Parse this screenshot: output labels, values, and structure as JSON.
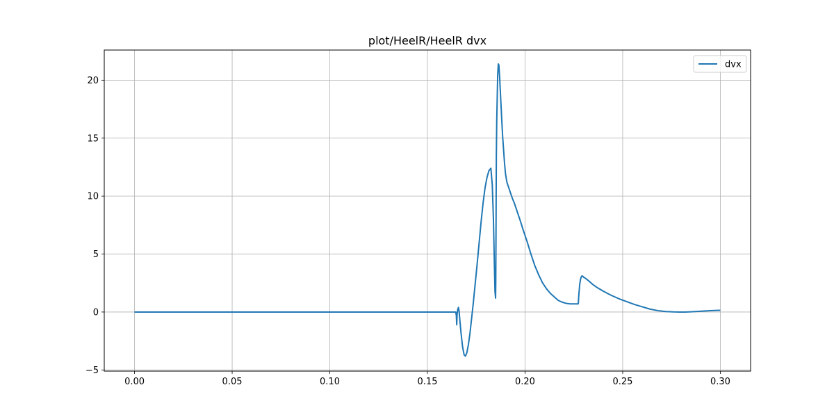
{
  "chart_data": {
    "type": "line",
    "title": "plot/HeelR/HeelR dvx",
    "xlabel": "",
    "ylabel": "",
    "xlim": [
      -0.0155,
      0.3155
    ],
    "ylim": [
      -5.1,
      22.6
    ],
    "xticks": [
      0.0,
      0.05,
      0.1,
      0.15,
      0.2,
      0.25,
      0.3
    ],
    "xtick_labels": [
      "0.00",
      "0.05",
      "0.10",
      "0.15",
      "0.20",
      "0.25",
      "0.30"
    ],
    "yticks": [
      -5,
      0,
      5,
      10,
      15,
      20
    ],
    "ytick_labels": [
      "−5",
      "0",
      "5",
      "10",
      "15",
      "20"
    ],
    "grid": true,
    "legend_position": "top-right",
    "series": [
      {
        "name": "dvx",
        "color": "#1f77b4",
        "x": [
          0.0,
          0.05,
          0.1,
          0.15,
          0.1645,
          0.1648,
          0.165,
          0.1652,
          0.1655,
          0.1659,
          0.1662,
          0.1665,
          0.1672,
          0.168,
          0.1688,
          0.1695,
          0.1702,
          0.171,
          0.1718,
          0.1726,
          0.1735,
          0.1745,
          0.1755,
          0.1765,
          0.1775,
          0.1785,
          0.1795,
          0.1805,
          0.1815,
          0.1825,
          0.1832,
          0.1838,
          0.1843,
          0.1846,
          0.1849,
          0.185,
          0.1851,
          0.1852,
          0.1853,
          0.1855,
          0.1858,
          0.186,
          0.1863,
          0.1866,
          0.187,
          0.1875,
          0.188,
          0.1885,
          0.189,
          0.1895,
          0.19,
          0.1907,
          0.1915,
          0.1925,
          0.1935,
          0.1945,
          0.1955,
          0.1965,
          0.1975,
          0.199,
          0.201,
          0.203,
          0.205,
          0.207,
          0.209,
          0.211,
          0.213,
          0.215,
          0.217,
          0.219,
          0.221,
          0.223,
          0.225,
          0.2265,
          0.2272,
          0.2273,
          0.2275,
          0.228,
          0.2285,
          0.229,
          0.2295,
          0.23,
          0.231,
          0.2325,
          0.2345,
          0.237,
          0.24,
          0.244,
          0.248,
          0.252,
          0.256,
          0.26,
          0.264,
          0.268,
          0.272,
          0.276,
          0.279,
          0.282,
          0.285,
          0.288,
          0.291,
          0.295,
          0.298,
          0.3
        ],
        "y": [
          0.0,
          0.0,
          0.0,
          0.0,
          0.0,
          -0.3,
          -1.1,
          -0.2,
          0.2,
          0.4,
          0.1,
          -0.5,
          -1.8,
          -3.0,
          -3.7,
          -3.8,
          -3.5,
          -2.8,
          -1.8,
          -0.6,
          0.8,
          2.5,
          4.2,
          6.0,
          7.8,
          9.4,
          10.7,
          11.6,
          12.2,
          12.4,
          11.0,
          8.0,
          4.0,
          1.8,
          1.2,
          2.5,
          6.0,
          10.0,
          13.5,
          16.5,
          19.0,
          20.5,
          21.4,
          21.3,
          20.2,
          18.5,
          16.8,
          15.2,
          14.0,
          12.8,
          11.9,
          11.2,
          10.8,
          10.3,
          9.8,
          9.4,
          8.9,
          8.4,
          7.9,
          7.1,
          6.1,
          5.0,
          4.0,
          3.2,
          2.5,
          2.0,
          1.6,
          1.3,
          1.0,
          0.85,
          0.75,
          0.7,
          0.7,
          0.7,
          0.7,
          0.8,
          1.4,
          2.4,
          2.9,
          3.1,
          3.1,
          3.0,
          2.9,
          2.7,
          2.4,
          2.1,
          1.8,
          1.45,
          1.15,
          0.9,
          0.65,
          0.45,
          0.25,
          0.12,
          0.04,
          0.01,
          0.0,
          0.0,
          0.02,
          0.05,
          0.08,
          0.12,
          0.14,
          0.15
        ]
      }
    ]
  }
}
